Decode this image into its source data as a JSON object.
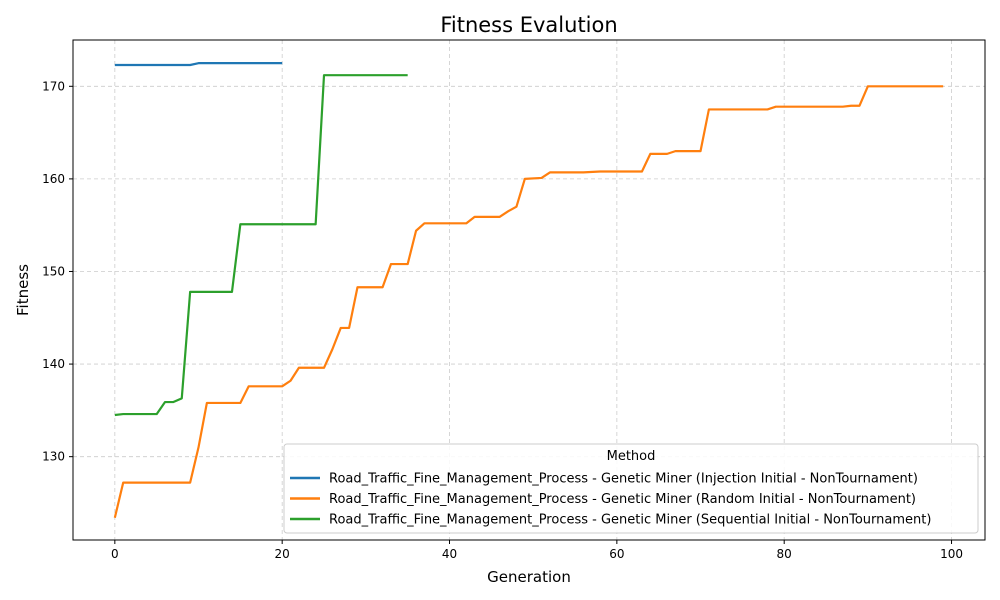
{
  "chart_data": {
    "type": "line",
    "title": "Fitness Evalution",
    "xlabel": "Generation",
    "ylabel": "Fitness",
    "xlim": [
      -5,
      104
    ],
    "ylim": [
      121,
      175
    ],
    "xticks": [
      0,
      20,
      40,
      60,
      80,
      100
    ],
    "yticks": [
      130,
      140,
      150,
      160,
      170
    ],
    "grid": true,
    "legend": {
      "title": "Method",
      "placement": "lower-right"
    },
    "series": [
      {
        "name": "Road_Traffic_Fine_Management_Process - Genetic Miner (Injection Initial - NonTournament)",
        "color": "#1f77b4",
        "x": [
          0,
          9,
          10,
          20
        ],
        "y": [
          172.3,
          172.3,
          172.5,
          172.5
        ]
      },
      {
        "name": "Road_Traffic_Fine_Management_Process - Genetic Miner (Random Initial - NonTournament)",
        "color": "#ff7f0e",
        "x": [
          0,
          1,
          9,
          10,
          11,
          15,
          16,
          20,
          21,
          22,
          25,
          26,
          27,
          28,
          29,
          32,
          33,
          35,
          36,
          37,
          42,
          43,
          46,
          47,
          48,
          49,
          51,
          52,
          56,
          58,
          63,
          64,
          66,
          67,
          70,
          71,
          78,
          79,
          87,
          88,
          89,
          90,
          99
        ],
        "y": [
          123.4,
          127.2,
          127.2,
          131.0,
          135.8,
          135.8,
          137.6,
          137.6,
          138.2,
          139.6,
          139.6,
          141.6,
          143.9,
          143.9,
          148.3,
          148.3,
          150.8,
          150.8,
          154.4,
          155.2,
          155.2,
          155.9,
          155.9,
          156.5,
          157.0,
          160.0,
          160.1,
          160.7,
          160.7,
          160.8,
          160.8,
          162.7,
          162.7,
          163.0,
          163.0,
          167.5,
          167.5,
          167.8,
          167.8,
          167.9,
          167.9,
          170.0,
          170.0
        ]
      },
      {
        "name": "Road_Traffic_Fine_Management_Process - Genetic Miner (Sequential Initial - NonTournament)",
        "color": "#2ca02c",
        "x": [
          0,
          1,
          5,
          6,
          7,
          8,
          9,
          14,
          15,
          24,
          25,
          35
        ],
        "y": [
          134.5,
          134.6,
          134.6,
          135.9,
          135.9,
          136.3,
          147.8,
          147.8,
          155.1,
          155.1,
          171.2,
          171.2
        ]
      }
    ]
  }
}
